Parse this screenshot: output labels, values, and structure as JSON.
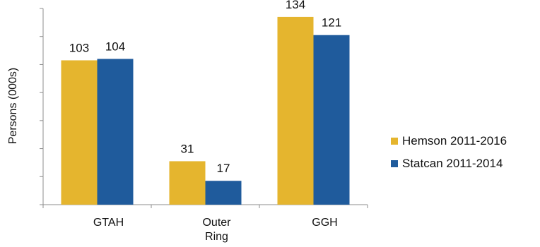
{
  "chart_data": {
    "type": "bar",
    "categories": [
      "GTAH",
      "Outer Ring",
      "GGH"
    ],
    "category_lines": [
      [
        "GTAH"
      ],
      [
        "Outer",
        "Ring"
      ],
      [
        "GGH"
      ]
    ],
    "series": [
      {
        "name": "Hemson 2011-2016",
        "values": [
          103,
          31,
          134
        ],
        "color": "#E5B52E"
      },
      {
        "name": "Statcan 2011-2014",
        "values": [
          104,
          17,
          121
        ],
        "color": "#1F5B9C"
      }
    ],
    "ylabel": "Persons (000s)",
    "ylim": [
      0,
      140
    ],
    "legend_position": "right",
    "grid": false
  }
}
